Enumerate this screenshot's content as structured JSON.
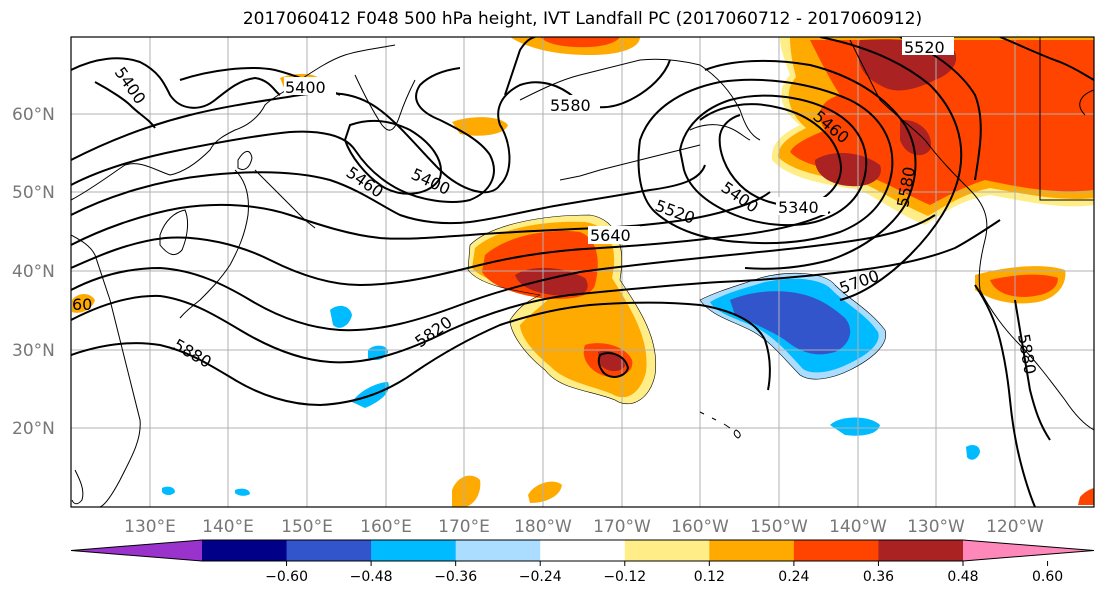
{
  "title": "2017060412 F048 500 hPa height, IVT Landfall PC (2017060712 - 2017060912)",
  "lat_labels": [
    "60°N",
    "50°N",
    "40°N",
    "30°N",
    "20°N"
  ],
  "lon_labels": [
    "130°E",
    "140°E",
    "150°E",
    "160°E",
    "170°E",
    "180°W",
    "170°W",
    "160°W",
    "150°W",
    "140°W",
    "130°W",
    "120°W"
  ],
  "contour_labels": [
    "5400",
    "5400",
    "5580",
    "5460",
    "5400",
    "5460",
    "5520",
    "5640",
    "5400",
    "5340",
    "5580",
    "5520",
    "5700",
    "5820",
    "5880",
    "5880",
    "60"
  ],
  "colorbar": {
    "tick_labels": [
      "−0.60",
      "−0.48",
      "−0.36",
      "−0.24",
      "−0.12",
      "0.12",
      "0.24",
      "0.36",
      "0.48",
      "0.60"
    ],
    "colors": [
      "#9933cc",
      "#000088",
      "#3355cc",
      "#00bbff",
      "#aaddff",
      "#ffffff",
      "#ffee88",
      "#ffaa00",
      "#ff4400",
      "#aa2222",
      "#ff88bb"
    ]
  }
}
